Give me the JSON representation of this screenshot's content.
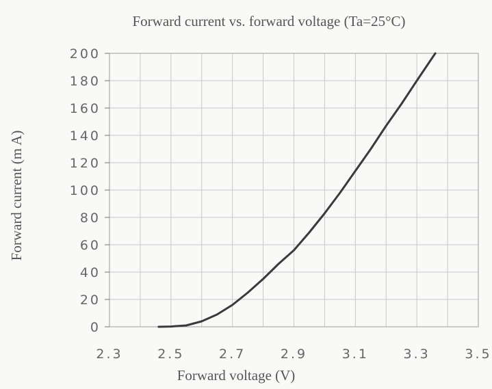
{
  "chart_data": {
    "type": "line",
    "title": "Forward current vs. forward voltage (Ta=25°C)",
    "xlabel": "Forward voltage (V)",
    "ylabel": "Forward current (m A)",
    "xlim": [
      2.3,
      3.5
    ],
    "ylim": [
      0,
      200
    ],
    "x_ticks": [
      2.3,
      2.5,
      2.7,
      2.9,
      3.1,
      3.3,
      3.5
    ],
    "x_tick_labels": [
      "2.3",
      "2.5",
      "2.7",
      "2.9",
      "3.1",
      "3.3",
      "3.5"
    ],
    "y_ticks": [
      0,
      20,
      40,
      60,
      80,
      100,
      120,
      140,
      160,
      180,
      200
    ],
    "y_tick_labels": [
      "0",
      "20",
      "40",
      "60",
      "80",
      "100",
      "120",
      "140",
      "160",
      "180",
      "200"
    ],
    "x_grid_step": 0.1,
    "grid": true,
    "series": [
      {
        "color": "#3a3a3a",
        "x": [
          2.46,
          2.5,
          2.55,
          2.6,
          2.65,
          2.7,
          2.75,
          2.8,
          2.85,
          2.9,
          2.95,
          3.0,
          3.05,
          3.1,
          3.15,
          3.2,
          3.25,
          3.3,
          3.36
        ],
        "y": [
          0,
          0.2,
          1,
          4,
          9,
          16,
          25,
          35,
          46,
          56,
          69,
          83,
          98,
          114,
          130,
          147,
          163,
          180,
          200
        ]
      }
    ]
  }
}
